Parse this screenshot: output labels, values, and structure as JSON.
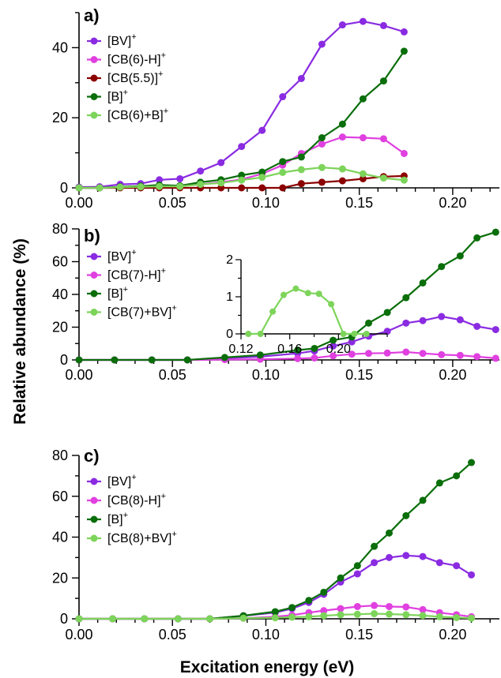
{
  "chart_data": [
    {
      "type": "line",
      "panel_label": "a",
      "xlim": [
        0,
        0.225
      ],
      "ylim": [
        0,
        50
      ],
      "xticks": [
        0.0,
        0.05,
        0.1,
        0.15,
        0.2
      ],
      "xtick_labels": [
        "0.00",
        "0.05",
        "0.10",
        "0.15",
        "0.20"
      ],
      "yticks": [
        0,
        20,
        40
      ],
      "ytick_labels": [
        "0",
        "20",
        "40"
      ],
      "legend_position": "top-left",
      "series": [
        {
          "name": "[BV]",
          "sup": "+",
          "color": "#8a2be2",
          "x": [
            0.0,
            0.011,
            0.022,
            0.033,
            0.043,
            0.054,
            0.065,
            0.076,
            0.087,
            0.098,
            0.109,
            0.119,
            0.13,
            0.141,
            0.152,
            0.163,
            0.174
          ],
          "y": [
            0.2,
            0.3,
            1.0,
            1.2,
            2.3,
            2.6,
            4.8,
            7.2,
            11.8,
            16.4,
            26.0,
            31.2,
            41.0,
            46.5,
            47.5,
            46.3,
            44.5
          ]
        },
        {
          "name": "[CB(6)-H]",
          "sup": "+",
          "color": "#e040e0",
          "x": [
            0.0,
            0.011,
            0.022,
            0.033,
            0.043,
            0.054,
            0.065,
            0.076,
            0.087,
            0.098,
            0.109,
            0.119,
            0.13,
            0.141,
            0.152,
            0.163,
            0.174
          ],
          "y": [
            0.0,
            0.0,
            0.1,
            0.2,
            0.5,
            0.6,
            1.0,
            1.6,
            2.4,
            4.0,
            6.5,
            9.8,
            12.5,
            14.5,
            14.3,
            14.0,
            9.8
          ]
        },
        {
          "name": "[CB(5.5)]",
          "sup": "+",
          "color": "#8b0000",
          "x": [
            0.0,
            0.011,
            0.022,
            0.033,
            0.043,
            0.054,
            0.065,
            0.076,
            0.087,
            0.098,
            0.109,
            0.119,
            0.13,
            0.141,
            0.152,
            0.163,
            0.174
          ],
          "y": [
            0.0,
            0.0,
            0.0,
            0.0,
            0.0,
            0.0,
            0.0,
            0.0,
            0.0,
            0.0,
            0.0,
            1.2,
            1.6,
            2.0,
            2.6,
            3.2,
            3.4
          ]
        },
        {
          "name": "[B]",
          "sup": "+",
          "color": "#0a6e0a",
          "x": [
            0.0,
            0.011,
            0.022,
            0.033,
            0.043,
            0.054,
            0.065,
            0.076,
            0.087,
            0.098,
            0.109,
            0.119,
            0.13,
            0.141,
            0.152,
            0.163,
            0.174
          ],
          "y": [
            0.0,
            0.0,
            0.3,
            0.5,
            0.8,
            0.6,
            1.6,
            2.3,
            3.6,
            4.5,
            7.5,
            8.8,
            14.3,
            18.2,
            25.4,
            30.5,
            39.0
          ]
        },
        {
          "name": "[CB(6)+B]",
          "sup": "+",
          "color": "#7dd45a",
          "x": [
            0.0,
            0.011,
            0.022,
            0.033,
            0.043,
            0.054,
            0.065,
            0.076,
            0.087,
            0.098,
            0.109,
            0.119,
            0.13,
            0.141,
            0.152,
            0.163,
            0.174
          ],
          "y": [
            0.0,
            0.0,
            0.2,
            0.3,
            0.4,
            0.4,
            1.0,
            1.4,
            2.2,
            3.0,
            4.4,
            5.2,
            5.8,
            5.4,
            4.0,
            2.8,
            2.2
          ]
        }
      ]
    },
    {
      "type": "line",
      "panel_label": "b",
      "xlim": [
        0,
        0.225
      ],
      "ylim": [
        0,
        80
      ],
      "xticks": [
        0.0,
        0.05,
        0.1,
        0.15,
        0.2
      ],
      "xtick_labels": [
        "0.00",
        "0.05",
        "0.10",
        "0.15",
        "0.20"
      ],
      "yticks": [
        0,
        20,
        40,
        60,
        80
      ],
      "ytick_labels": [
        "0",
        "20",
        "40",
        "60",
        "80"
      ],
      "legend_position": "top-left",
      "series": [
        {
          "name": "[BV]",
          "sup": "+",
          "color": "#8a2be2",
          "x": [
            0.0,
            0.019,
            0.039,
            0.058,
            0.078,
            0.097,
            0.117,
            0.126,
            0.136,
            0.146,
            0.155,
            0.165,
            0.175,
            0.184,
            0.194,
            0.204,
            0.213,
            0.223
          ],
          "y": [
            0.0,
            0.0,
            0.0,
            0.0,
            1.0,
            2.0,
            4.0,
            5.5,
            8.5,
            11.0,
            14.5,
            17.5,
            22.5,
            24.0,
            26.5,
            24.5,
            20.5,
            18.5
          ]
        },
        {
          "name": "[CB(7)-H]",
          "sup": "+",
          "color": "#e040e0",
          "x": [
            0.0,
            0.019,
            0.039,
            0.058,
            0.078,
            0.097,
            0.117,
            0.126,
            0.136,
            0.146,
            0.155,
            0.165,
            0.175,
            0.184,
            0.194,
            0.204,
            0.213,
            0.223
          ],
          "y": [
            0.0,
            0.0,
            0.0,
            0.0,
            0.2,
            0.4,
            0.8,
            1.2,
            2.5,
            3.5,
            4.0,
            4.2,
            4.8,
            4.0,
            3.2,
            2.8,
            2.0,
            1.0
          ]
        },
        {
          "name": "[B]",
          "sup": "+",
          "color": "#0a6e0a",
          "x": [
            0.0,
            0.019,
            0.039,
            0.058,
            0.078,
            0.097,
            0.117,
            0.126,
            0.136,
            0.146,
            0.155,
            0.165,
            0.175,
            0.184,
            0.194,
            0.204,
            0.213,
            0.223
          ],
          "y": [
            0.0,
            0.0,
            0.0,
            0.0,
            1.5,
            3.0,
            6.0,
            7.0,
            12.0,
            14.0,
            22.5,
            29.0,
            38.0,
            47.0,
            57.0,
            63.5,
            74.5,
            78.0
          ]
        },
        {
          "name": "[CB(7)+BV]",
          "sup": "+",
          "color": "#7dd45a",
          "x": [],
          "y": []
        }
      ],
      "inset": {
        "series_color": "#7dd45a",
        "xlim": [
          0.12,
          0.24
        ],
        "ylim": [
          0,
          2
        ],
        "xticks": [
          0.12,
          0.16,
          0.2
        ],
        "xtick_labels": [
          "0.12",
          "0.16",
          "0.20"
        ],
        "yticks": [
          0,
          1,
          2
        ],
        "ytick_labels": [
          "0",
          "1",
          "2"
        ],
        "x": [
          0.126,
          0.136,
          0.146,
          0.155,
          0.165,
          0.175,
          0.184,
          0.194,
          0.204,
          0.213,
          0.223
        ],
        "y": [
          0.0,
          0.0,
          0.6,
          1.05,
          1.22,
          1.1,
          1.08,
          0.8,
          0.0,
          0.0,
          0.0
        ]
      }
    },
    {
      "type": "line",
      "panel_label": "c",
      "xlim": [
        0,
        0.225
      ],
      "ylim": [
        0,
        80
      ],
      "xticks": [
        0.0,
        0.05,
        0.1,
        0.15,
        0.2
      ],
      "xtick_labels": [
        "0.00",
        "0.05",
        "0.10",
        "0.15",
        "0.20"
      ],
      "yticks": [
        0,
        20,
        40,
        60,
        80
      ],
      "ytick_labels": [
        "0",
        "20",
        "40",
        "60",
        "80"
      ],
      "legend_position": "top-left",
      "series": [
        {
          "name": "[BV]",
          "sup": "+",
          "color": "#8a2be2",
          "x": [
            0.0,
            0.018,
            0.035,
            0.053,
            0.07,
            0.088,
            0.105,
            0.114,
            0.123,
            0.131,
            0.14,
            0.149,
            0.158,
            0.166,
            0.175,
            0.184,
            0.193,
            0.202,
            0.21
          ],
          "y": [
            0.0,
            0.0,
            0.0,
            0.0,
            0.0,
            1.5,
            3.0,
            5.0,
            8.0,
            12.0,
            18.0,
            22.0,
            27.5,
            30.0,
            31.0,
            30.5,
            27.5,
            26.0,
            21.5
          ]
        },
        {
          "name": "[CB(8)-H]",
          "sup": "+",
          "color": "#e040e0",
          "x": [
            0.0,
            0.018,
            0.035,
            0.053,
            0.07,
            0.088,
            0.105,
            0.114,
            0.123,
            0.131,
            0.14,
            0.149,
            0.158,
            0.166,
            0.175,
            0.184,
            0.193,
            0.202,
            0.21
          ],
          "y": [
            0.0,
            0.0,
            0.0,
            0.0,
            0.0,
            0.3,
            1.0,
            1.8,
            3.0,
            4.0,
            5.0,
            6.0,
            6.5,
            6.0,
            5.8,
            4.5,
            3.0,
            2.0,
            1.0
          ]
        },
        {
          "name": "[B]",
          "sup": "+",
          "color": "#0a6e0a",
          "x": [
            0.0,
            0.018,
            0.035,
            0.053,
            0.07,
            0.088,
            0.105,
            0.114,
            0.123,
            0.131,
            0.14,
            0.149,
            0.158,
            0.166,
            0.175,
            0.184,
            0.193,
            0.202,
            0.21
          ],
          "y": [
            0.0,
            0.0,
            0.0,
            0.0,
            0.0,
            1.5,
            3.5,
            5.5,
            9.0,
            13.0,
            20.0,
            26.0,
            35.5,
            42.0,
            50.5,
            58.0,
            66.5,
            70.0,
            76.5
          ]
        },
        {
          "name": "[CB(8)+BV]",
          "sup": "+",
          "color": "#7dd45a",
          "x": [
            0.0,
            0.018,
            0.035,
            0.053,
            0.07,
            0.088,
            0.105,
            0.114,
            0.123,
            0.131,
            0.14,
            0.149,
            0.158,
            0.166,
            0.175,
            0.184,
            0.193,
            0.202,
            0.21
          ],
          "y": [
            0.0,
            0.0,
            0.0,
            0.0,
            0.0,
            0.3,
            0.5,
            0.8,
            1.0,
            1.5,
            2.0,
            2.2,
            2.5,
            2.3,
            2.0,
            1.6,
            1.0,
            0.6,
            0.3
          ]
        }
      ]
    }
  ],
  "ylabel": "Relative abundance (%)",
  "xlabel": "Excitation energy (eV)"
}
